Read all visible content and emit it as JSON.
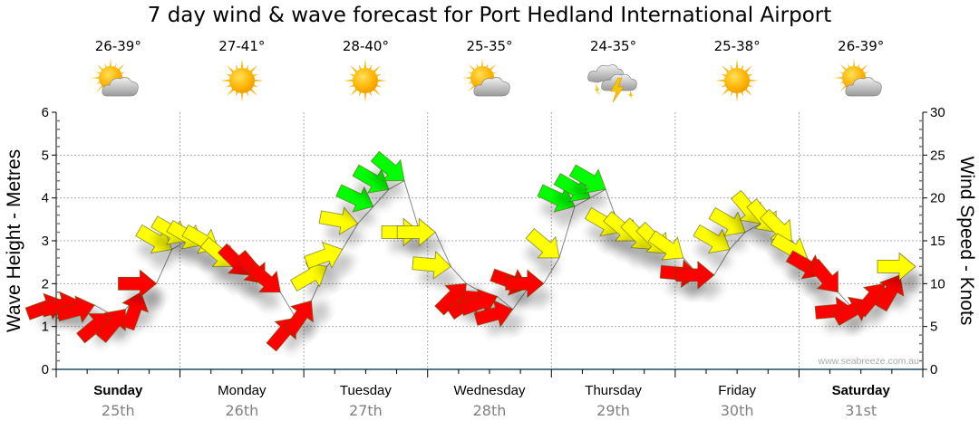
{
  "chart_data": {
    "type": "scatter",
    "title": "7 day wind & wave forecast for Port Hedland International Airport",
    "ylabel_left": "Wave Height - Metres",
    "ylabel_right": "Wind Speed - Knots",
    "ylim_left": [
      0,
      6
    ],
    "ylim_right": [
      0,
      30
    ],
    "yticks_left": [
      "0",
      "1",
      "2",
      "3",
      "4",
      "5",
      "6"
    ],
    "yticks_right": [
      "0",
      "5",
      "10",
      "15",
      "20",
      "25",
      "30"
    ],
    "grid": true,
    "watermark": "www.seabreeze.com.au",
    "days": [
      {
        "name": "Sunday",
        "date": "25th",
        "temp": "26-39°",
        "icon": "partly-cloudy-icon",
        "bold": true
      },
      {
        "name": "Monday",
        "date": "26th",
        "temp": "27-41°",
        "icon": "sunny-icon",
        "bold": false
      },
      {
        "name": "Tuesday",
        "date": "27th",
        "temp": "28-40°",
        "icon": "sunny-icon",
        "bold": false
      },
      {
        "name": "Wednesday",
        "date": "28th",
        "temp": "25-35°",
        "icon": "partly-cloudy-icon",
        "bold": false
      },
      {
        "name": "Thursday",
        "date": "29th",
        "temp": "24-35°",
        "icon": "storm-icon",
        "bold": false
      },
      {
        "name": "Friday",
        "date": "30th",
        "temp": "25-38°",
        "icon": "sunny-icon",
        "bold": false
      },
      {
        "name": "Saturday",
        "date": "31st",
        "temp": "26-39°",
        "icon": "partly-cloudy-icon",
        "bold": true
      }
    ],
    "wind_colors": {
      "light": "#ff0000",
      "moderate": "#ffff00",
      "strong": "#00ff00"
    },
    "wind_series": {
      "name": "Wind Speed (knots)",
      "hours": [
        0,
        1,
        2,
        3,
        4,
        5,
        6,
        7,
        8,
        9,
        10,
        11,
        12,
        13,
        14,
        15,
        16,
        17,
        18,
        19,
        20,
        21,
        22,
        23,
        24,
        25,
        26,
        27,
        28,
        29,
        30,
        31,
        32,
        33,
        34,
        35,
        36,
        37,
        38,
        39,
        40,
        41,
        42,
        43,
        44,
        45,
        46,
        47,
        48,
        49,
        50,
        51,
        52,
        53,
        54,
        55
      ],
      "speed_knots": [
        8,
        8,
        7.5,
        6.5,
        7,
        9,
        10,
        14,
        15,
        14.5,
        14,
        12,
        11,
        10,
        9,
        6,
        8,
        12,
        14,
        17,
        19,
        21,
        22,
        16,
        16,
        12,
        10,
        9,
        8.5,
        7,
        9.5,
        10,
        13,
        19,
        20,
        21,
        16,
        15,
        14,
        13.5,
        13,
        11,
        11,
        14,
        16,
        17,
        16,
        15,
        13,
        11,
        9,
        7,
        8,
        10,
        11,
        12
      ],
      "direction_deg": [
        250,
        255,
        255,
        230,
        220,
        200,
        270,
        300,
        300,
        300,
        300,
        310,
        315,
        320,
        310,
        220,
        215,
        240,
        250,
        280,
        295,
        300,
        310,
        270,
        270,
        275,
        225,
        235,
        250,
        255,
        290,
        270,
        310,
        295,
        300,
        300,
        300,
        310,
        315,
        315,
        305,
        275,
        270,
        300,
        300,
        320,
        320,
        315,
        300,
        300,
        320,
        265,
        240,
        220,
        210,
        270
      ]
    }
  }
}
